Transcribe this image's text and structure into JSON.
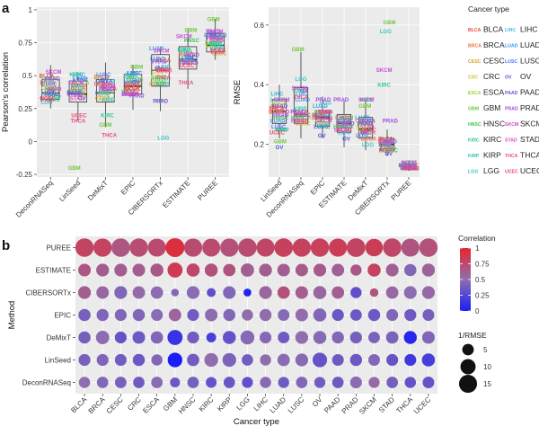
{
  "panel_labels": {
    "a": "a",
    "b": "b"
  },
  "cancer_types": [
    "BLCA",
    "BRCA",
    "CESC",
    "CRC",
    "ESCA",
    "GBM",
    "HNSC",
    "KIRC",
    "KIRP",
    "LGG",
    "LIHC",
    "LUAD",
    "LUSC",
    "OV",
    "PAAD",
    "PRAD",
    "SKCM",
    "STAD",
    "THCA",
    "UCEC"
  ],
  "colors": {
    "BLCA": "#e84b3c",
    "BRCA": "#e7773a",
    "CESC": "#d4a52a",
    "CRC": "#c8c73a",
    "ESCA": "#a3cf3c",
    "GBM": "#6fc83e",
    "HNSC": "#39c454",
    "KIRC": "#2fc688",
    "KIRP": "#33c7b1",
    "LGG": "#34c5c8",
    "LIHC": "#3ab7e0",
    "LUAD": "#3d97e6",
    "LUSC": "#4a78e8",
    "OV": "#4e55d8",
    "PAAD": "#7b4fe0",
    "PRAD": "#a04ee0",
    "SKCM": "#c94ad6",
    "STAD": "#e04cb5",
    "THCA": "#e64b8d",
    "UCEC": "#e74b66"
  },
  "legend": {
    "title": "Cancer type",
    "items": [
      {
        "abbr": "BLCA",
        "label": "BLCA"
      },
      {
        "abbr": "LIHC",
        "label": "LIHC"
      },
      {
        "abbr": "BRCA",
        "label": "BRCA"
      },
      {
        "abbr": "LUAD",
        "label": "LUAD"
      },
      {
        "abbr": "CESC",
        "label": "CESC"
      },
      {
        "abbr": "LUSC",
        "label": "LUSC"
      },
      {
        "abbr": "CRC",
        "label": "CRC"
      },
      {
        "abbr": "OV",
        "label": "OV"
      },
      {
        "abbr": "ESCA",
        "label": "ESCA"
      },
      {
        "abbr": "PAAD",
        "label": "PAAD"
      },
      {
        "abbr": "GBM",
        "label": "GBM"
      },
      {
        "abbr": "PRAD",
        "label": "PRAD"
      },
      {
        "abbr": "HNSC",
        "label": "HNSC"
      },
      {
        "abbr": "SKCM",
        "label": "SKCM"
      },
      {
        "abbr": "KIRC",
        "label": "KIRC"
      },
      {
        "abbr": "STAD",
        "label": "STAD"
      },
      {
        "abbr": "KIRP",
        "label": "KIRP"
      },
      {
        "abbr": "THCA",
        "label": "THCA"
      },
      {
        "abbr": "LGG",
        "label": "LGG"
      },
      {
        "abbr": "UCEC",
        "label": "UCEC"
      }
    ]
  },
  "chart_data": [
    {
      "id": "pearson",
      "type": "box-text",
      "ylabel": "Pearson's correlation",
      "ylim": [
        -0.27,
        1.02
      ],
      "yticks": [
        -0.25,
        0,
        0.25,
        0.5,
        0.75,
        1
      ],
      "ytick_labels": [
        "-0.25",
        "0",
        "0.25",
        "0.5",
        "0.75",
        "1"
      ],
      "categories": [
        "DeconRNASeq",
        "LinSeed",
        "DeMixT",
        "EPIC",
        "CIBERSORTx",
        "ESTIMATE",
        "PUREE"
      ],
      "boxes": [
        {
          "q1": 0.32,
          "median": 0.37,
          "q3": 0.47,
          "lo": 0.25,
          "hi": 0.58
        },
        {
          "q1": 0.3,
          "median": 0.36,
          "q3": 0.46,
          "lo": 0.16,
          "hi": 0.53
        },
        {
          "q1": 0.3,
          "median": 0.37,
          "q3": 0.47,
          "lo": 0.11,
          "hi": 0.6
        },
        {
          "q1": 0.36,
          "median": 0.42,
          "q3": 0.51,
          "lo": 0.24,
          "hi": 0.58
        },
        {
          "q1": 0.42,
          "median": 0.54,
          "q3": 0.66,
          "lo": 0.23,
          "hi": 0.72
        },
        {
          "q1": 0.55,
          "median": 0.62,
          "q3": 0.72,
          "lo": 0.4,
          "hi": 0.86
        },
        {
          "q1": 0.68,
          "median": 0.73,
          "q3": 0.82,
          "lo": 0.62,
          "hi": 0.93
        }
      ],
      "points": [
        {
          "ct": "BLCA",
          "values": [
            0.5,
            0.41,
            0.4,
            0.41,
            0.62,
            0.67,
            0.79
          ]
        },
        {
          "ct": "BRCA",
          "values": [
            0.45,
            0.43,
            0.49,
            0.44,
            0.55,
            0.62,
            0.8
          ]
        },
        {
          "ct": "CESC",
          "values": [
            0.41,
            0.38,
            0.33,
            0.44,
            0.44,
            0.62,
            0.67
          ]
        },
        {
          "ct": "CRC",
          "values": [
            0.37,
            0.36,
            0.36,
            0.45,
            0.53,
            0.62,
            0.73
          ]
        },
        {
          "ct": "ESCA",
          "values": [
            0.48,
            0.45,
            0.44,
            0.48,
            0.49,
            0.66,
            0.75
          ]
        },
        {
          "ct": "GBM",
          "values": [
            0.36,
            -0.2,
            0.13,
            0.57,
            0.45,
            0.85,
            0.93
          ]
        },
        {
          "ct": "HNSC",
          "values": [
            0.4,
            0.38,
            0.38,
            0.38,
            0.48,
            0.77,
            0.74
          ]
        },
        {
          "ct": "KIRC",
          "values": [
            0.32,
            0.51,
            0.2,
            0.49,
            0.31,
            0.7,
            0.75
          ]
        },
        {
          "ct": "KIRP",
          "values": [
            0.34,
            0.42,
            0.32,
            0.45,
            0.44,
            0.69,
            0.71
          ]
        },
        {
          "ct": "LGG",
          "values": [
            0.3,
            0.38,
            0.46,
            0.51,
            0.03,
            0.61,
            0.74
          ]
        },
        {
          "ct": "LIHC",
          "values": [
            0.47,
            0.51,
            0.46,
            0.52,
            0.57,
            0.62,
            0.78
          ]
        },
        {
          "ct": "LUAD",
          "values": [
            0.37,
            0.48,
            0.37,
            0.47,
            0.71,
            0.62,
            0.81
          ]
        },
        {
          "ct": "LUSC",
          "values": [
            0.44,
            0.47,
            0.51,
            0.52,
            0.63,
            0.64,
            0.81
          ]
        },
        {
          "ct": "OV",
          "values": [
            0.38,
            0.33,
            0.47,
            0.45,
            0.56,
            0.64,
            0.82
          ]
        },
        {
          "ct": "PAAD",
          "values": [
            0.36,
            0.37,
            0.45,
            0.35,
            0.61,
            0.6,
            0.84
          ]
        },
        {
          "ct": "PRAD",
          "values": [
            0.48,
            0.36,
            0.4,
            0.36,
            0.31,
            0.66,
            0.79
          ]
        },
        {
          "ct": "SKCM",
          "values": [
            0.53,
            0.45,
            0.42,
            0.36,
            0.69,
            0.8,
            0.84
          ]
        },
        {
          "ct": "STAD",
          "values": [
            0.4,
            0.33,
            0.42,
            0.44,
            0.55,
            0.6,
            0.77
          ]
        },
        {
          "ct": "THCA",
          "values": [
            0.32,
            0.16,
            0.05,
            0.37,
            0.49,
            0.45,
            0.68
          ]
        },
        {
          "ct": "UCEC",
          "values": [
            0.33,
            0.2,
            0.44,
            0.4,
            0.54,
            0.58,
            0.7
          ]
        }
      ]
    },
    {
      "id": "rmse",
      "type": "box-text",
      "ylabel": "RMSE",
      "ylim": [
        0.09,
        0.66
      ],
      "yticks": [
        0.2,
        0.4,
        0.6
      ],
      "ytick_labels": [
        "0.2",
        "0.4",
        "0.6"
      ],
      "categories": [
        "LinSeed",
        "DeconRNASeq",
        "EPIC",
        "ESTIMATE",
        "DeMixT",
        "CIBERSORTx",
        "PUREE"
      ],
      "boxes": [
        {
          "q1": 0.27,
          "median": 0.31,
          "q3": 0.35,
          "lo": 0.22,
          "hi": 0.4
        },
        {
          "q1": 0.27,
          "median": 0.3,
          "q3": 0.39,
          "lo": 0.22,
          "hi": 0.51
        },
        {
          "q1": 0.26,
          "median": 0.29,
          "q3": 0.31,
          "lo": 0.22,
          "hi": 0.36
        },
        {
          "q1": 0.24,
          "median": 0.27,
          "q3": 0.3,
          "lo": 0.19,
          "hi": 0.35
        },
        {
          "q1": 0.22,
          "median": 0.25,
          "q3": 0.29,
          "lo": 0.18,
          "hi": 0.35
        },
        {
          "q1": 0.18,
          "median": 0.2,
          "q3": 0.22,
          "lo": 0.16,
          "hi": 0.25
        },
        {
          "q1": 0.118,
          "median": 0.124,
          "q3": 0.135,
          "lo": 0.11,
          "hi": 0.145
        }
      ],
      "points": [
        {
          "ct": "BLCA",
          "values": [
            0.31,
            0.31,
            0.29,
            0.28,
            0.28,
            0.22,
            0.12
          ]
        },
        {
          "ct": "BRCA",
          "values": [
            0.32,
            0.3,
            0.29,
            0.26,
            0.22,
            0.21,
            0.12
          ]
        },
        {
          "ct": "CESC",
          "values": [
            0.33,
            0.27,
            0.3,
            0.26,
            0.28,
            0.19,
            0.13
          ]
        },
        {
          "ct": "CRC",
          "values": [
            0.31,
            0.3,
            0.28,
            0.27,
            0.25,
            0.2,
            0.12
          ]
        },
        {
          "ct": "ESCA",
          "values": [
            0.34,
            0.29,
            0.31,
            0.26,
            0.26,
            0.19,
            0.13
          ]
        },
        {
          "ct": "GBM",
          "values": [
            0.21,
            0.52,
            0.27,
            0.29,
            0.33,
            0.61,
            0.12
          ]
        },
        {
          "ct": "HNSC",
          "values": [
            0.29,
            0.29,
            0.31,
            0.26,
            0.27,
            0.18,
            0.12
          ]
        },
        {
          "ct": "KIRC",
          "values": [
            0.25,
            0.38,
            0.26,
            0.29,
            0.35,
            0.4,
            0.14
          ]
        },
        {
          "ct": "KIRP",
          "values": [
            0.25,
            0.32,
            0.3,
            0.28,
            0.24,
            0.2,
            0.13
          ]
        },
        {
          "ct": "LGG",
          "values": [
            0.35,
            0.42,
            0.34,
            0.27,
            0.2,
            0.58,
            0.12
          ]
        },
        {
          "ct": "LIHC",
          "values": [
            0.37,
            0.37,
            0.3,
            0.24,
            0.28,
            0.2,
            0.13
          ]
        },
        {
          "ct": "LUAD",
          "values": [
            0.28,
            0.35,
            0.33,
            0.26,
            0.29,
            0.21,
            0.12
          ]
        },
        {
          "ct": "LUSC",
          "values": [
            0.26,
            0.3,
            0.26,
            0.28,
            0.23,
            0.19,
            0.13
          ]
        },
        {
          "ct": "OV",
          "values": [
            0.19,
            0.38,
            0.23,
            0.22,
            0.24,
            0.17,
            0.12
          ]
        },
        {
          "ct": "PAAD",
          "values": [
            0.33,
            0.31,
            0.29,
            0.27,
            0.27,
            0.21,
            0.13
          ]
        },
        {
          "ct": "PRAD",
          "values": [
            0.3,
            0.28,
            0.35,
            0.35,
            0.28,
            0.28,
            0.12
          ]
        },
        {
          "ct": "SKCM",
          "values": [
            0.35,
            0.39,
            0.28,
            0.25,
            0.35,
            0.45,
            0.14
          ]
        },
        {
          "ct": "STAD",
          "values": [
            0.31,
            0.3,
            0.31,
            0.27,
            0.26,
            0.21,
            0.12
          ]
        },
        {
          "ct": "THCA",
          "values": [
            0.32,
            0.36,
            0.31,
            0.29,
            0.24,
            0.2,
            0.13
          ]
        },
        {
          "ct": "UCEC",
          "values": [
            0.24,
            0.28,
            0.3,
            0.25,
            0.25,
            0.18,
            0.12
          ]
        }
      ]
    },
    {
      "id": "dotplot",
      "type": "bubble-heatmap",
      "xlabel": "Cancer type",
      "ylabel": "Method",
      "methods": [
        "PUREE",
        "ESTIMATE",
        "CIBERSORTx",
        "EPIC",
        "DeMixT",
        "LinSeed",
        "DeconRNASeq"
      ],
      "categories": [
        "BLCA",
        "BRCA",
        "CESC",
        "CRC",
        "ESCA",
        "GBM",
        "HNSC",
        "KIRC",
        "KIRP",
        "LGG",
        "LIHC",
        "LUAD",
        "LUSC",
        "OV",
        "PAAD",
        "PRAD",
        "SKCM",
        "STAD",
        "THCA",
        "UCEC"
      ],
      "correlation": [
        [
          0.79,
          0.8,
          0.67,
          0.73,
          0.75,
          0.93,
          0.74,
          0.75,
          0.71,
          0.74,
          0.78,
          0.81,
          0.81,
          0.82,
          0.84,
          0.79,
          0.84,
          0.77,
          0.68,
          0.7
        ],
        [
          0.67,
          0.62,
          0.62,
          0.62,
          0.66,
          0.85,
          0.77,
          0.7,
          0.69,
          0.61,
          0.62,
          0.62,
          0.64,
          0.64,
          0.6,
          0.66,
          0.8,
          0.6,
          0.45,
          0.58
        ],
        [
          0.62,
          0.55,
          0.44,
          0.53,
          0.49,
          0.45,
          0.48,
          0.31,
          0.44,
          0.03,
          0.57,
          0.71,
          0.63,
          0.56,
          0.61,
          0.31,
          0.69,
          0.55,
          0.49,
          0.54
        ],
        [
          0.41,
          0.44,
          0.44,
          0.45,
          0.48,
          0.57,
          0.38,
          0.49,
          0.45,
          0.51,
          0.52,
          0.47,
          0.52,
          0.45,
          0.35,
          0.36,
          0.36,
          0.44,
          0.37,
          0.4
        ],
        [
          0.4,
          0.49,
          0.33,
          0.36,
          0.44,
          0.13,
          0.38,
          0.2,
          0.32,
          0.46,
          0.46,
          0.37,
          0.51,
          0.47,
          0.45,
          0.4,
          0.42,
          0.42,
          0.05,
          0.44
        ],
        [
          0.41,
          0.43,
          0.38,
          0.36,
          0.45,
          -0.2,
          0.38,
          0.51,
          0.42,
          0.38,
          0.51,
          0.48,
          0.47,
          0.33,
          0.37,
          0.36,
          0.45,
          0.33,
          0.16,
          0.2
        ],
        [
          0.5,
          0.45,
          0.41,
          0.37,
          0.48,
          0.36,
          0.4,
          0.32,
          0.34,
          0.3,
          0.47,
          0.37,
          0.44,
          0.38,
          0.36,
          0.48,
          0.53,
          0.4,
          0.32,
          0.33
        ]
      ],
      "inv_rmse": [
        [
          15.8,
          15.5,
          16.0,
          15.6,
          15.1,
          16.8,
          15.3,
          14.8,
          15.4,
          15.9,
          15.2,
          16.1,
          15.5,
          15.6,
          15.2,
          16.3,
          14.2,
          15.9,
          15.0,
          15.7
        ],
        [
          6.3,
          6.6,
          6.5,
          6.4,
          6.8,
          9.8,
          7.0,
          6.8,
          6.0,
          7.2,
          6.6,
          6.3,
          6.2,
          6.4,
          6.2,
          4.6,
          6.9,
          6.4,
          5.8,
          6.7
        ],
        [
          6.5,
          6.2,
          6.5,
          6.2,
          6.0,
          1.6,
          6.5,
          2.5,
          6.3,
          1.7,
          6.5,
          6.0,
          6.3,
          6.9,
          6.1,
          4.6,
          2.2,
          6.0,
          6.4,
          6.6
        ],
        [
          5.8,
          5.6,
          5.4,
          5.7,
          5.3,
          6.2,
          5.3,
          6.3,
          5.6,
          4.7,
          5.6,
          5.1,
          6.3,
          7.0,
          5.4,
          5.0,
          5.7,
          5.3,
          5.5,
          5.3
        ],
        [
          5.8,
          7.3,
          5.4,
          6.3,
          5.9,
          9.9,
          5.5,
          3.2,
          6.9,
          8.0,
          5.4,
          5.1,
          6.6,
          6.8,
          5.6,
          5.5,
          5.0,
          6.0,
          6.7,
          6.3
        ],
        [
          5.4,
          5.4,
          5.3,
          5.7,
          4.6,
          9.2,
          5.9,
          7.8,
          7.8,
          4.8,
          4.6,
          6.0,
          6.5,
          9.0,
          5.2,
          5.6,
          5.1,
          5.3,
          5.3,
          6.9
        ],
        [
          4.7,
          4.8,
          5.0,
          4.8,
          4.9,
          3.4,
          4.9,
          4.2,
          4.8,
          4.4,
          4.6,
          4.5,
          4.8,
          4.5,
          4.9,
          5.3,
          4.4,
          4.9,
          4.7,
          5.1
        ]
      ],
      "color_legend": {
        "title": "Correlation",
        "min": 0,
        "max": 1,
        "ticks": [
          1,
          0.75,
          0.5,
          0.25,
          0
        ],
        "tick_labels": [
          "1",
          "0.75",
          "0.5",
          "0.25",
          "0"
        ],
        "stops": [
          "#e8252c",
          "#8e6fb0",
          "#1a1ef5"
        ]
      },
      "size_legend": {
        "title": "1/RMSE",
        "ticks": [
          5,
          10,
          15
        ],
        "tick_labels": [
          "5",
          "10",
          "15"
        ]
      }
    }
  ]
}
